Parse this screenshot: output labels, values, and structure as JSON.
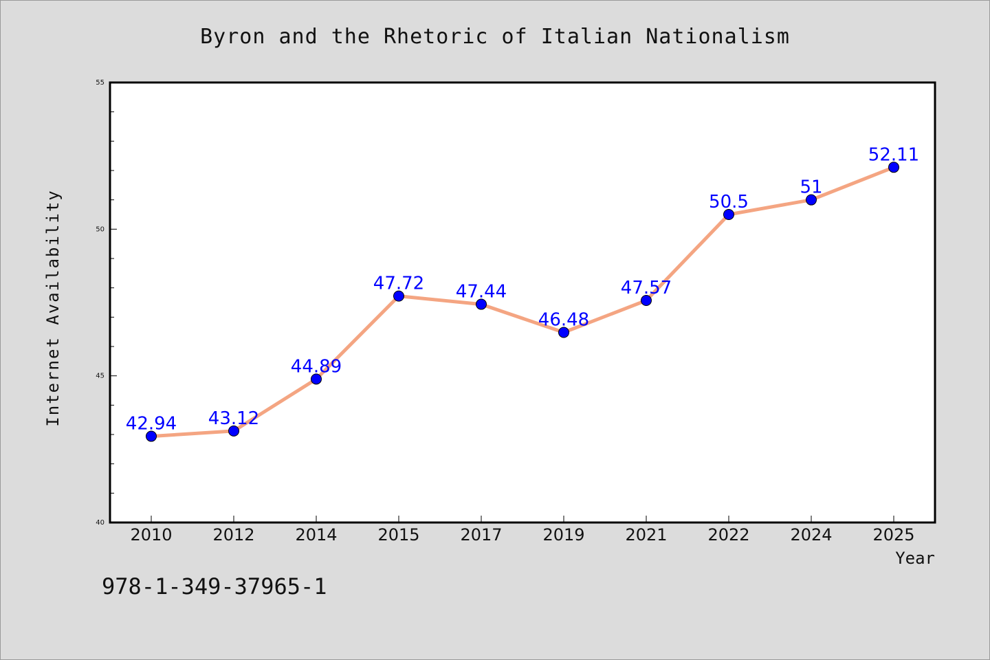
{
  "chart_data": {
    "type": "line",
    "title": "Byron and the Rhetoric of Italian Nationalism",
    "xlabel": "Year",
    "ylabel": "Internet Availability",
    "categories": [
      "2010",
      "2012",
      "2014",
      "2015",
      "2017",
      "2019",
      "2021",
      "2022",
      "2024",
      "2025"
    ],
    "series": [
      {
        "values": [
          42.94,
          43.12,
          44.89,
          47.72,
          47.44,
          46.48,
          47.57,
          50.5,
          51,
          52.11
        ],
        "data_labels": [
          "42.94",
          "43.12",
          "44.89",
          "47.72",
          "47.44",
          "46.48",
          "47.57",
          "50.5",
          "51",
          "52.11"
        ]
      }
    ],
    "ylim": [
      40,
      55
    ],
    "yticks": [
      40,
      45,
      50,
      55
    ],
    "grid": false,
    "legend": "none",
    "colors": {
      "line": "#f4a582",
      "marker": "#0000ff",
      "data_label": "#0000ff",
      "plot_background": "#ffffff",
      "figure_background": "#dcdcdc"
    }
  },
  "annotation": "978-1-349-37965-1"
}
